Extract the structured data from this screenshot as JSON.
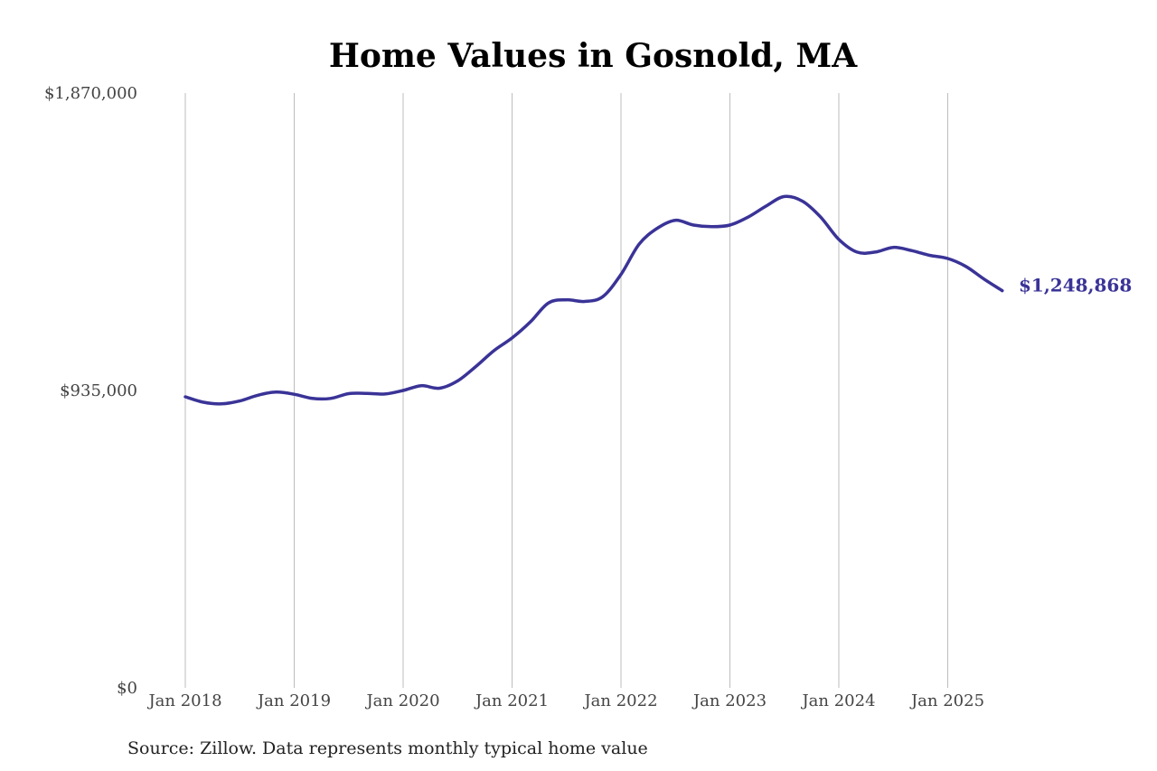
{
  "chart_data": {
    "type": "line",
    "title": "Home Values in Gosnold, MA",
    "source": "Source: Zillow. Data represents monthly typical home value",
    "ylim": [
      0,
      1870000
    ],
    "y_ticks": [
      {
        "value": 0,
        "label": "$0"
      },
      {
        "value": 935000,
        "label": "$935,000"
      },
      {
        "value": 1870000,
        "label": "$1,870,000"
      }
    ],
    "x_ticks": [
      "Jan 2018",
      "Jan 2019",
      "Jan 2020",
      "Jan 2021",
      "Jan 2022",
      "Jan 2023",
      "Jan 2024",
      "Jan 2025"
    ],
    "grid": "vertical",
    "color": "#3a3397",
    "end_label": "$1,248,868",
    "series": [
      {
        "x": [
          "2018-01",
          "2018-03",
          "2018-05",
          "2018-07",
          "2018-09",
          "2018-11",
          "2019-01",
          "2019-03",
          "2019-05",
          "2019-07",
          "2019-09",
          "2019-11",
          "2020-01",
          "2020-03",
          "2020-05",
          "2020-07",
          "2020-09",
          "2020-11",
          "2021-01",
          "2021-03",
          "2021-05",
          "2021-07",
          "2021-09",
          "2021-11",
          "2022-01",
          "2022-03",
          "2022-05",
          "2022-07",
          "2022-09",
          "2022-11",
          "2023-01",
          "2023-03",
          "2023-05",
          "2023-07",
          "2023-09",
          "2023-11",
          "2024-01",
          "2024-03",
          "2024-05",
          "2024-07",
          "2024-09",
          "2024-11",
          "2025-01",
          "2025-03",
          "2025-05",
          "2025-07"
        ],
        "y": [
          915000,
          898000,
          893000,
          902000,
          920000,
          930000,
          923000,
          910000,
          910000,
          925000,
          926000,
          924000,
          935000,
          950000,
          942000,
          965000,
          1010000,
          1060000,
          1100000,
          1150000,
          1210000,
          1220000,
          1215000,
          1230000,
          1300000,
          1395000,
          1445000,
          1470000,
          1455000,
          1450000,
          1455000,
          1480000,
          1515000,
          1545000,
          1530000,
          1480000,
          1410000,
          1370000,
          1370000,
          1385000,
          1375000,
          1360000,
          1350000,
          1325000,
          1285000,
          1248868
        ]
      }
    ]
  }
}
